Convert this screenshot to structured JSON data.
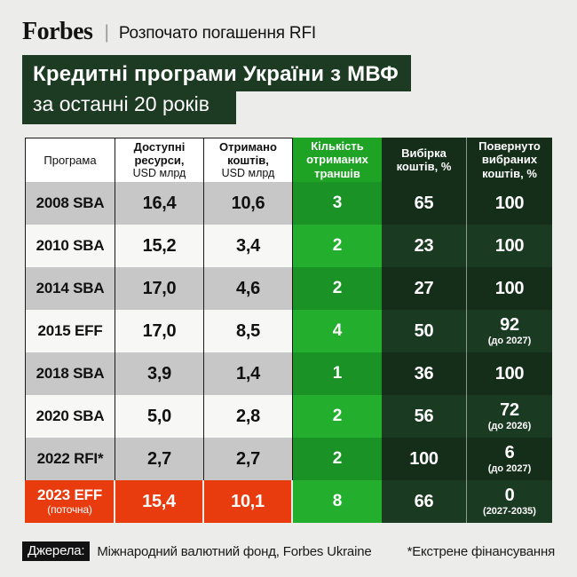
{
  "masthead": {
    "logo": "Forbes",
    "divider": "|",
    "kicker": "Розпочато погашення RFI"
  },
  "title": {
    "line1": "Кредитні програми України з МВФ",
    "line2": "за останні 20 років"
  },
  "colors": {
    "page_background": "#ececea",
    "title_bg": "#1d3b23",
    "green_bright": "#23ae2d",
    "green_dark": "#1b9226",
    "darkgreen_col": "#142e1a",
    "darkgreen_col_alt": "#1a3a21",
    "highlight_red": "#e83b0e",
    "row_gray": "#c7c7c7",
    "row_white": "#f7f7f5"
  },
  "table": {
    "columns": [
      {
        "label": "Програма",
        "sublabel": ""
      },
      {
        "label": "Доступні ресурси,",
        "sublabel": "USD млрд"
      },
      {
        "label": "Отримано коштів,",
        "sublabel": "USD млрд"
      },
      {
        "label": "Кількість отриманих траншів",
        "sublabel": ""
      },
      {
        "label": "Вибірка коштів, %",
        "sublabel": ""
      },
      {
        "label": "Повернуто вибраних коштів, %",
        "sublabel": ""
      }
    ],
    "rows": [
      {
        "program": "2008 SBA",
        "program_note": "",
        "available": "16,4",
        "received": "10,6",
        "tranches": "3",
        "drawn": "65",
        "repaid": "100",
        "repaid_note": ""
      },
      {
        "program": "2010 SBA",
        "program_note": "",
        "available": "15,2",
        "received": "3,4",
        "tranches": "2",
        "drawn": "23",
        "repaid": "100",
        "repaid_note": ""
      },
      {
        "program": "2014 SBA",
        "program_note": "",
        "available": "17,0",
        "received": "4,6",
        "tranches": "2",
        "drawn": "27",
        "repaid": "100",
        "repaid_note": ""
      },
      {
        "program": "2015 EFF",
        "program_note": "",
        "available": "17,0",
        "received": "8,5",
        "tranches": "4",
        "drawn": "50",
        "repaid": "92",
        "repaid_note": "(до 2027)"
      },
      {
        "program": "2018 SBA",
        "program_note": "",
        "available": "3,9",
        "received": "1,4",
        "tranches": "1",
        "drawn": "36",
        "repaid": "100",
        "repaid_note": ""
      },
      {
        "program": "2020 SBA",
        "program_note": "",
        "available": "5,0",
        "received": "2,8",
        "tranches": "2",
        "drawn": "56",
        "repaid": "72",
        "repaid_note": "(до 2026)"
      },
      {
        "program": "2022 RFI*",
        "program_note": "",
        "available": "2,7",
        "received": "2,7",
        "tranches": "2",
        "drawn": "100",
        "repaid": "6",
        "repaid_note": "(до 2027)"
      },
      {
        "program": "2023 EFF",
        "program_note": "(поточна)",
        "available": "15,4",
        "received": "10,1",
        "tranches": "8",
        "drawn": "66",
        "repaid": "0",
        "repaid_note": "(2027-2035)"
      }
    ]
  },
  "footer": {
    "sources_label": "Джерела:",
    "sources": "Міжнародний валютний фонд, Forbes Ukraine",
    "footnote": "*Екстрене фінансування"
  }
}
